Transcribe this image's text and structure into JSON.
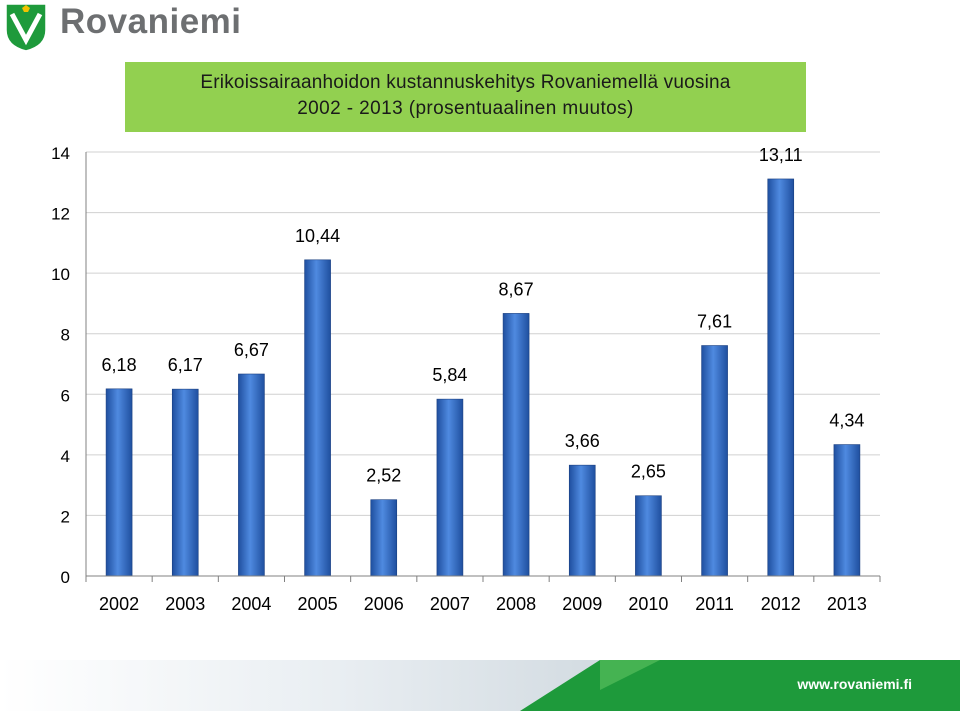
{
  "brand": {
    "name": "Rovaniemi",
    "url": "www.rovaniemi.fi",
    "colors": {
      "green": "#1e9a3b",
      "logo_gray": "#6d6f71",
      "title_bg": "#92d050",
      "bar": "#2e64c4"
    }
  },
  "chart_data": {
    "type": "bar",
    "title_line1": "Erikoissairaanhoidon kustannuskehitys Rovaniemellä vuosina",
    "title_line2": "2002 - 2013 (prosentuaalinen muutos)",
    "categories": [
      "2002",
      "2003",
      "2004",
      "2005",
      "2006",
      "2007",
      "2008",
      "2009",
      "2010",
      "2011",
      "2012",
      "2013"
    ],
    "values": [
      6.18,
      6.17,
      6.67,
      10.44,
      2.52,
      5.84,
      8.67,
      3.66,
      2.65,
      7.61,
      13.11,
      4.34
    ],
    "data_labels": [
      "6,18",
      "6,17",
      "6,67",
      "10,44",
      "2,52",
      "5,84",
      "8,67",
      "3,66",
      "2,65",
      "7,61",
      "13,11",
      "4,34"
    ],
    "yticks": [
      0,
      2,
      4,
      6,
      8,
      10,
      12,
      14
    ],
    "ylim": [
      0,
      14
    ],
    "grid": true,
    "legend": "none"
  }
}
